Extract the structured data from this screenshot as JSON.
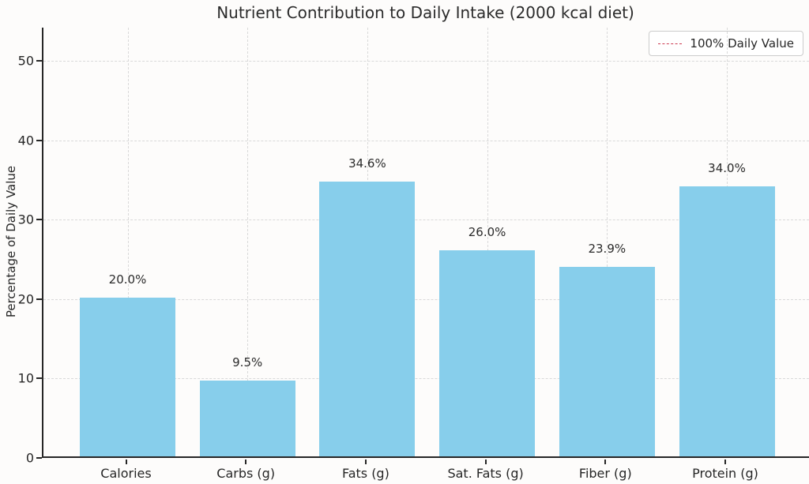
{
  "chart_data": {
    "type": "bar",
    "title": "Nutrient Contribution to Daily Intake (2000 kcal diet)",
    "xlabel": "",
    "ylabel": "Percentage of Daily Value",
    "categories": [
      "Calories",
      "Carbs (g)",
      "Fats (g)",
      "Sat. Fats (g)",
      "Fiber (g)",
      "Protein (g)"
    ],
    "values": [
      20.0,
      9.5,
      34.6,
      26.0,
      23.9,
      34.0
    ],
    "bar_labels": [
      "20.0%",
      "9.5%",
      "34.6%",
      "26.0%",
      "23.9%",
      "34.0%"
    ],
    "yticks": [
      0,
      10,
      20,
      30,
      40,
      50
    ],
    "ylim": [
      0,
      54.2
    ],
    "grid": {
      "style": "dashed",
      "axes": "both",
      "color": "#d9d9d9"
    },
    "colors": {
      "bar": "#87CEEB",
      "reference_line": "#CC3A50",
      "spine": "#262626",
      "text": "#262626"
    },
    "legend": {
      "position": "upper right",
      "entries": [
        {
          "label": "100% Daily Value",
          "marker": "dashed-line",
          "color": "#CC3A50"
        }
      ]
    }
  }
}
